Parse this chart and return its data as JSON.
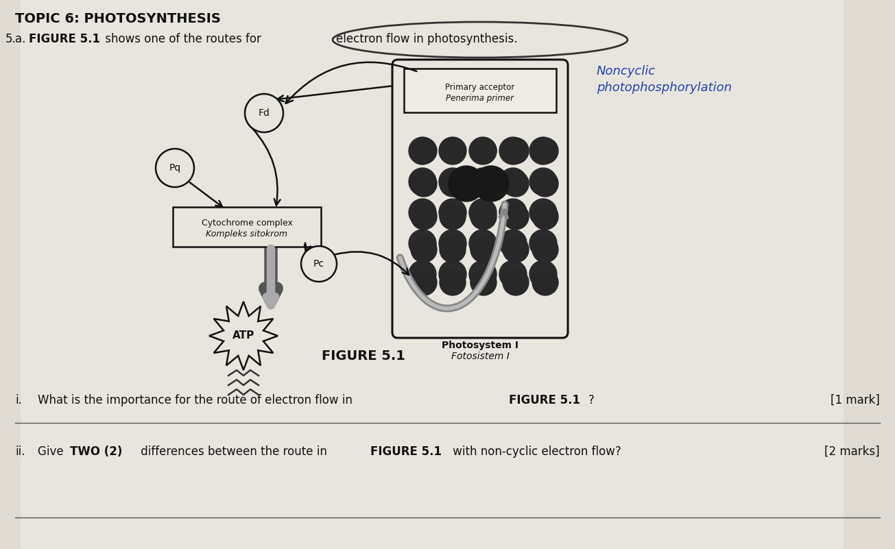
{
  "bg_color": "#dbd7cf",
  "title_topic": "TOPIC 6: PHOTOSYNTHESIS",
  "handwritten_note": "Noncyclic\nphotophosphorylation",
  "figure_label": "FIGURE 5.1",
  "question_i_mark": "[1 mark]",
  "question_i_text": "What is the importance for the route of electron flow in FIGURE 5.1?",
  "question_ii_mark": "[2 marks]",
  "question_ii_text": "Give TWO (2) differences between the route in FIGURE 5.1 with non-cyclic electron flow?",
  "node_fd": "Fd",
  "node_pq": "Pq",
  "node_pc": "Pc",
  "node_cytochrome_line1": "Cytochrome complex",
  "node_cytochrome_line2": "Kompleks sitokrom",
  "node_atp": "ATP",
  "node_primary_line1": "Primary acceptor",
  "node_primary_line2": "Penerima primer",
  "node_ps1_line1": "Photosystem I",
  "node_ps1_line2": "Fotosistem I"
}
